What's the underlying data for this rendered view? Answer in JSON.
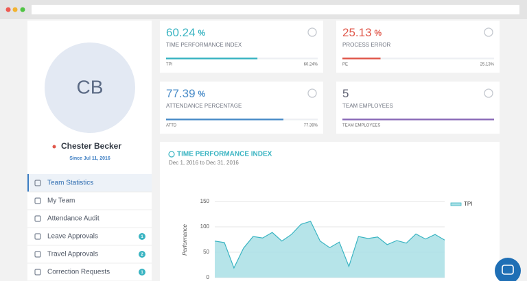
{
  "sidebar": {
    "initials": "CB",
    "name": "Chester Becker",
    "since": "Since Jul 11, 2016",
    "menu": [
      {
        "label": "Team Statistics",
        "active": true
      },
      {
        "label": "My Team"
      },
      {
        "label": "Attendance Audit"
      },
      {
        "label": "Leave Approvals",
        "badge": 1
      },
      {
        "label": "Travel Approvals",
        "badge": 2
      },
      {
        "label": "Correction Requests",
        "badge": 1
      }
    ]
  },
  "cards": [
    {
      "value": 60.24,
      "unit": "%",
      "label": "TIME PERFORMANCE INDEX",
      "footer": "TPI",
      "footer_value": "60.24%",
      "color": "#3ab4c2",
      "bar_color": "#3ab4c2"
    },
    {
      "value": 25.13,
      "unit": "%",
      "label": "PROCESS ERROR",
      "footer": "PE",
      "footer_value": "25.13%",
      "color": "#e0574a",
      "bar_color": "#e0574a"
    },
    {
      "value": 77.39,
      "unit": "%",
      "label": "ATTENDANCE PERCENTAGE",
      "footer": "ATTD",
      "footer_value": "77.39%",
      "color": "#4a8cc8",
      "bar_color": "#4a8cc8"
    },
    {
      "value": 5,
      "label": "TEAM EMPLOYEES",
      "footer": "TEAM EMPLOYEES",
      "color": "#5c5f70",
      "bar_color": "#8b6bb8"
    }
  ],
  "chart_data": {
    "type": "area",
    "title": "TIME PERFORMANCE INDEX",
    "subtitle": "Dec 1, 2016 to Dec 31, 2016",
    "y_label": "Performance",
    "categories": [
      null,
      null,
      null,
      null,
      null,
      null,
      null,
      null,
      null,
      null,
      null,
      null,
      null,
      null,
      null,
      null,
      null,
      null,
      null,
      null,
      null,
      null,
      null,
      null,
      null
    ],
    "series": [
      {
        "name": "TPI",
        "color": "#3ab4c2",
        "fill": "#a9dfe5",
        "values": [
          72,
          69,
          19,
          58,
          81,
          78,
          89,
          72,
          85,
          105,
          111,
          72,
          59,
          70,
          22,
          81,
          77,
          80,
          65,
          73,
          68,
          86,
          76,
          85,
          74
        ]
      }
    ],
    "ylim": [
      0,
      150
    ],
    "yticks": [
      0,
      50,
      100,
      150
    ],
    "grid": true,
    "legend": "right"
  }
}
